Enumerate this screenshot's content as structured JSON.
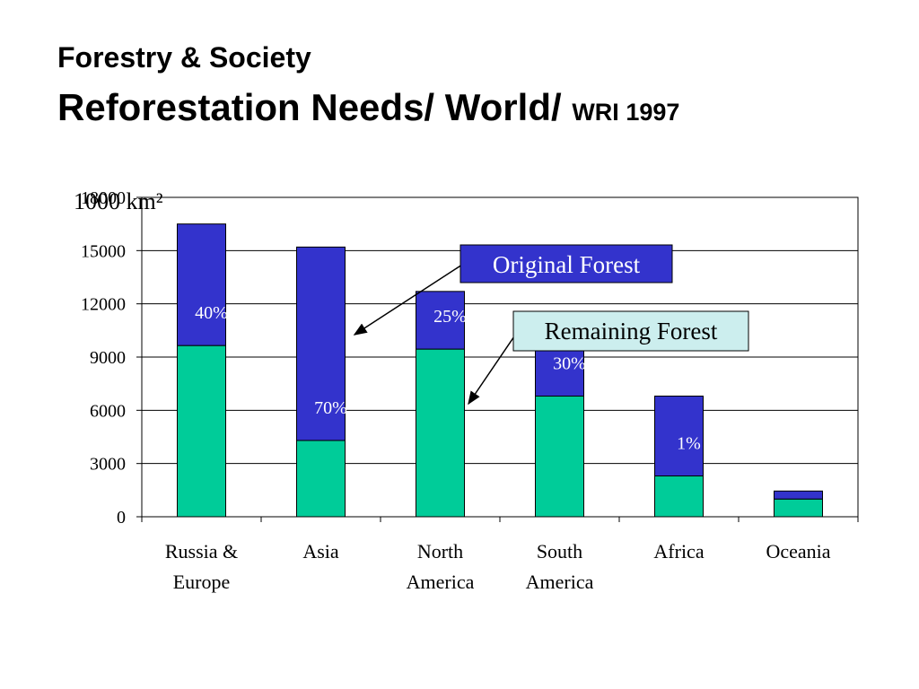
{
  "chart_data": {
    "type": "stacked_bar",
    "title": "Forestry & Society",
    "subtitle": "Reforestation Needs/ World/",
    "source": "WRI 1997",
    "y_label": "1000 km²",
    "categories": [
      "Russia & Europe",
      "Asia",
      "North America",
      "South America",
      "Africa",
      "Oceania"
    ],
    "series": [
      {
        "name": "Remaining Forest",
        "color": "#00cc99",
        "values": [
          9650,
          4300,
          9450,
          6800,
          2300,
          1000
        ]
      },
      {
        "name": "Original Forest",
        "color": "#3333cc",
        "values": [
          6850,
          10900,
          3250,
          2900,
          4500,
          450
        ]
      }
    ],
    "bar_labels": [
      "40%",
      "70%",
      "25%",
      "30%",
      "1%",
      null
    ],
    "ylim": [
      0,
      18000
    ],
    "yticks": [
      0,
      3000,
      6000,
      9000,
      12000,
      15000,
      18000
    ],
    "grid": true
  }
}
